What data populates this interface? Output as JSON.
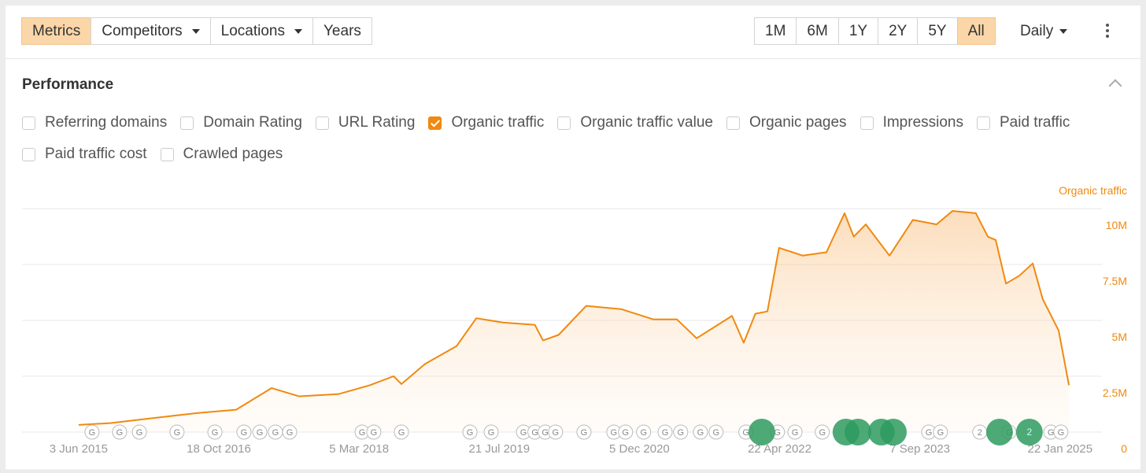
{
  "toolbar": {
    "views": [
      {
        "label": "Metrics",
        "active": true
      },
      {
        "label": "Competitors",
        "dropdown": true
      },
      {
        "label": "Locations",
        "dropdown": true
      },
      {
        "label": "Years"
      }
    ],
    "ranges": [
      {
        "label": "1M"
      },
      {
        "label": "6M"
      },
      {
        "label": "1Y"
      },
      {
        "label": "2Y"
      },
      {
        "label": "5Y"
      },
      {
        "label": "All",
        "active": true
      }
    ],
    "interval": "Daily"
  },
  "section": {
    "title": "Performance",
    "metric_rows": [
      [
        {
          "label": "Referring domains",
          "checked": false
        },
        {
          "label": "Domain Rating",
          "checked": false
        },
        {
          "label": "URL Rating",
          "checked": false
        },
        {
          "label": "Organic traffic",
          "checked": true
        },
        {
          "label": "Organic traffic value",
          "checked": false
        },
        {
          "label": "Organic pages",
          "checked": false
        },
        {
          "label": "Impressions",
          "checked": false
        },
        {
          "label": "Paid traffic",
          "checked": false
        }
      ],
      [
        {
          "label": "Paid traffic cost",
          "checked": false
        },
        {
          "label": "Crawled pages",
          "checked": false
        }
      ]
    ]
  },
  "chart_data": {
    "type": "area",
    "y_axis_label": "Organic traffic",
    "x": [
      "2015-06-03",
      "2015-09-24",
      "2016-03-11",
      "2016-07-31",
      "2016-12-19",
      "2017-04-25",
      "2017-08-02",
      "2017-12-21",
      "2018-04-13",
      "2018-07-07",
      "2018-08-04",
      "2018-10-28",
      "2019-02-18",
      "2019-04-30",
      "2019-08-05",
      "2019-11-26",
      "2019-12-25",
      "2020-02-19",
      "2020-05-28",
      "2020-10-02",
      "2021-01-23",
      "2021-04-18",
      "2021-06-28",
      "2021-11-02",
      "2021-12-14",
      "2022-01-25",
      "2022-03-09",
      "2022-04-20",
      "2022-07-14",
      "2022-10-07",
      "2022-12-11",
      "2023-01-13",
      "2023-02-25",
      "2023-05-21",
      "2023-08-13",
      "2023-11-06",
      "2024-01-02",
      "2024-03-26",
      "2024-05-08",
      "2024-06-05",
      "2024-07-12",
      "2024-08-29",
      "2024-10-16",
      "2024-11-21",
      "2025-01-17",
      "2025-02-23"
    ],
    "series": [
      {
        "name": "Organic traffic",
        "color": "#f0890f",
        "values": [
          320000,
          400000,
          650000,
          850000,
          1000000,
          1970000,
          1600000,
          1700000,
          2100000,
          2500000,
          2150000,
          3050000,
          3850000,
          5100000,
          4900000,
          4800000,
          4100000,
          4350000,
          5650000,
          5500000,
          5050000,
          5050000,
          4200000,
          5200000,
          4000000,
          5300000,
          5400000,
          8250000,
          7900000,
          8050000,
          9800000,
          8750000,
          9300000,
          7900000,
          9500000,
          9300000,
          9900000,
          9800000,
          8750000,
          8600000,
          6650000,
          7000000,
          7550000,
          5950000,
          4550000,
          2100000
        ]
      }
    ],
    "xlim": [
      "2014-11-12",
      "2025-05-24"
    ],
    "xticks": [
      {
        "value": "2015-06-03",
        "label": "3 Jun 2015"
      },
      {
        "value": "2016-10-18",
        "label": "18 Oct 2016"
      },
      {
        "value": "2018-03-05",
        "label": "5 Mar 2018"
      },
      {
        "value": "2019-07-21",
        "label": "21 Jul 2019"
      },
      {
        "value": "2020-12-05",
        "label": "5 Dec 2020"
      },
      {
        "value": "2022-04-22",
        "label": "22 Apr 2022"
      },
      {
        "value": "2023-09-07",
        "label": "7 Sep 2023"
      },
      {
        "value": "2025-01-22",
        "label": "22 Jan 2025"
      }
    ],
    "ylim": [
      0,
      10500000
    ],
    "yticks": [
      0,
      {
        "value": 2500000,
        "label": "2.5M"
      },
      {
        "value": 5000000,
        "label": "5M"
      },
      {
        "value": 7500000,
        "label": "7.5M"
      },
      {
        "value": 10000000,
        "label": "10M"
      }
    ],
    "grid": true,
    "update_markers": [
      {
        "x": "2015-07-21",
        "label": "G"
      },
      {
        "x": "2015-10-28",
        "label": "G"
      },
      {
        "x": "2016-01-07",
        "label": "G"
      },
      {
        "x": "2016-05-21",
        "label": "G"
      },
      {
        "x": "2016-10-04",
        "label": "G"
      },
      {
        "x": "2017-01-16",
        "label": "G"
      },
      {
        "x": "2017-03-14",
        "label": "G"
      },
      {
        "x": "2017-05-09",
        "label": "G"
      },
      {
        "x": "2017-06-29",
        "label": "G"
      },
      {
        "x": "2018-03-16",
        "label": "G"
      },
      {
        "x": "2018-04-27",
        "label": "G"
      },
      {
        "x": "2018-08-04",
        "label": "G"
      },
      {
        "x": "2019-04-07",
        "label": "G"
      },
      {
        "x": "2019-06-22",
        "label": "G"
      },
      {
        "x": "2019-10-16",
        "label": "G"
      },
      {
        "x": "2019-11-26",
        "label": "G"
      },
      {
        "x": "2020-01-02",
        "label": "G"
      },
      {
        "x": "2020-02-08",
        "label": "G"
      },
      {
        "x": "2020-05-20",
        "label": "G"
      },
      {
        "x": "2020-09-04",
        "label": "G"
      },
      {
        "x": "2020-10-16",
        "label": "G"
      },
      {
        "x": "2020-12-20",
        "label": "G"
      },
      {
        "x": "2021-03-07",
        "label": "G"
      },
      {
        "x": "2021-05-02",
        "label": "G"
      },
      {
        "x": "2021-07-12",
        "label": "G"
      },
      {
        "x": "2021-09-06",
        "label": "G"
      },
      {
        "x": "2021-12-22",
        "label": "G"
      },
      {
        "x": "2022-04-14",
        "label": "G"
      },
      {
        "x": "2022-06-16",
        "label": "G"
      },
      {
        "x": "2022-09-22",
        "label": "G"
      },
      {
        "x": "2023-10-09",
        "label": "G"
      },
      {
        "x": "2023-11-20",
        "label": "G"
      },
      {
        "x": "2024-04-09",
        "label": "2"
      },
      {
        "x": "2024-07-23",
        "label": "G"
      },
      {
        "x": "2024-12-20",
        "label": "G"
      },
      {
        "x": "2025-01-25",
        "label": "G"
      }
    ],
    "highlight_markers": [
      {
        "x": "2022-02-17"
      },
      {
        "x": "2022-12-16"
      },
      {
        "x": "2023-01-28"
      },
      {
        "x": "2023-04-22"
      },
      {
        "x": "2023-06-04"
      },
      {
        "x": "2024-06-19"
      },
      {
        "x": "2024-10-04",
        "label": "2"
      }
    ]
  }
}
